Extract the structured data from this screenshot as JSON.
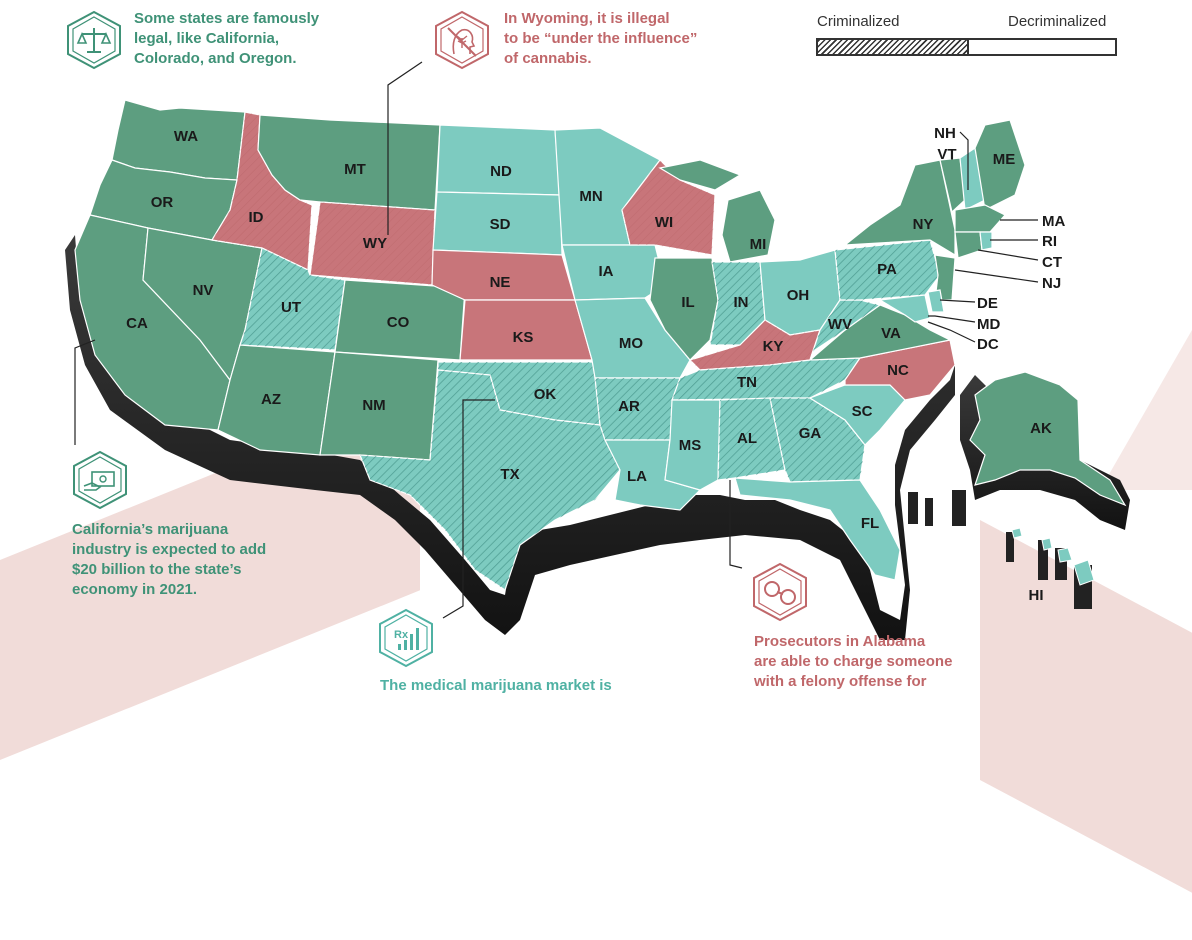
{
  "legend": {
    "left_label": "Criminalized",
    "right_label": "Decriminalized",
    "hatched_fraction": 0.5
  },
  "colors": {
    "legal": "#5d9e80",
    "medical": "#7dcbc0",
    "illegal": "#c8757a",
    "text_green": "#3f9277",
    "text_red": "#c0676a",
    "extrusion": "#2c2c2c"
  },
  "callouts": {
    "top_left": {
      "text_lines": [
        "Some states are famously",
        "legal, like California,",
        "Colorado, and Oregon."
      ],
      "icon": "scales-of-justice-icon"
    },
    "top_center": {
      "text_lines": [
        "In Wyoming, it is illegal",
        "to be “under the influence”",
        "of cannabis."
      ],
      "icon": "no-cannabis-leaf-head-icon"
    },
    "left": {
      "text_lines": [
        "California’s marijuana",
        "industry is expected to add",
        "$20 billion to the state’s",
        "economy in 2021."
      ],
      "icon": "money-hand-icon"
    },
    "bottom_center": {
      "text_lines": [
        "The medical marijuana market is"
      ],
      "icon": "prescription-chart-icon"
    },
    "bottom_right": {
      "text_lines": [
        "Prosecutors in Alabama",
        "are able to charge someone",
        "with a felony offense for"
      ],
      "icon": "handcuffs-icon"
    }
  },
  "states": [
    {
      "abbr": "WA",
      "status": "legal"
    },
    {
      "abbr": "OR",
      "status": "legal"
    },
    {
      "abbr": "CA",
      "status": "legal"
    },
    {
      "abbr": "NV",
      "status": "legal"
    },
    {
      "abbr": "ID",
      "status": "illegal"
    },
    {
      "abbr": "MT",
      "status": "legal"
    },
    {
      "abbr": "WY",
      "status": "illegal"
    },
    {
      "abbr": "UT",
      "status": "medical",
      "decriminalized": false
    },
    {
      "abbr": "CO",
      "status": "legal"
    },
    {
      "abbr": "AZ",
      "status": "legal"
    },
    {
      "abbr": "NM",
      "status": "legal"
    },
    {
      "abbr": "ND",
      "status": "medical"
    },
    {
      "abbr": "SD",
      "status": "medical"
    },
    {
      "abbr": "NE",
      "status": "illegal"
    },
    {
      "abbr": "KS",
      "status": "illegal"
    },
    {
      "abbr": "OK",
      "status": "medical"
    },
    {
      "abbr": "TX",
      "status": "medical"
    },
    {
      "abbr": "MN",
      "status": "medical"
    },
    {
      "abbr": "IA",
      "status": "medical"
    },
    {
      "abbr": "MO",
      "status": "medical"
    },
    {
      "abbr": "AR",
      "status": "medical"
    },
    {
      "abbr": "LA",
      "status": "medical"
    },
    {
      "abbr": "WI",
      "status": "illegal"
    },
    {
      "abbr": "IL",
      "status": "legal"
    },
    {
      "abbr": "MI",
      "status": "legal"
    },
    {
      "abbr": "IN",
      "status": "medical"
    },
    {
      "abbr": "OH",
      "status": "medical"
    },
    {
      "abbr": "KY",
      "status": "illegal"
    },
    {
      "abbr": "TN",
      "status": "medical"
    },
    {
      "abbr": "MS",
      "status": "medical"
    },
    {
      "abbr": "AL",
      "status": "medical"
    },
    {
      "abbr": "GA",
      "status": "medical"
    },
    {
      "abbr": "FL",
      "status": "medical"
    },
    {
      "abbr": "SC",
      "status": "medical"
    },
    {
      "abbr": "NC",
      "status": "illegal"
    },
    {
      "abbr": "VA",
      "status": "legal"
    },
    {
      "abbr": "WV",
      "status": "medical"
    },
    {
      "abbr": "PA",
      "status": "medical"
    },
    {
      "abbr": "NY",
      "status": "legal"
    },
    {
      "abbr": "VT",
      "status": "legal"
    },
    {
      "abbr": "NH",
      "status": "medical"
    },
    {
      "abbr": "ME",
      "status": "legal"
    },
    {
      "abbr": "MA",
      "status": "legal"
    },
    {
      "abbr": "RI",
      "status": "medical"
    },
    {
      "abbr": "CT",
      "status": "legal"
    },
    {
      "abbr": "NJ",
      "status": "legal"
    },
    {
      "abbr": "DE",
      "status": "medical"
    },
    {
      "abbr": "MD",
      "status": "medical"
    },
    {
      "abbr": "DC",
      "status": "legal"
    },
    {
      "abbr": "AK",
      "status": "legal"
    },
    {
      "abbr": "HI",
      "status": "medical"
    }
  ]
}
